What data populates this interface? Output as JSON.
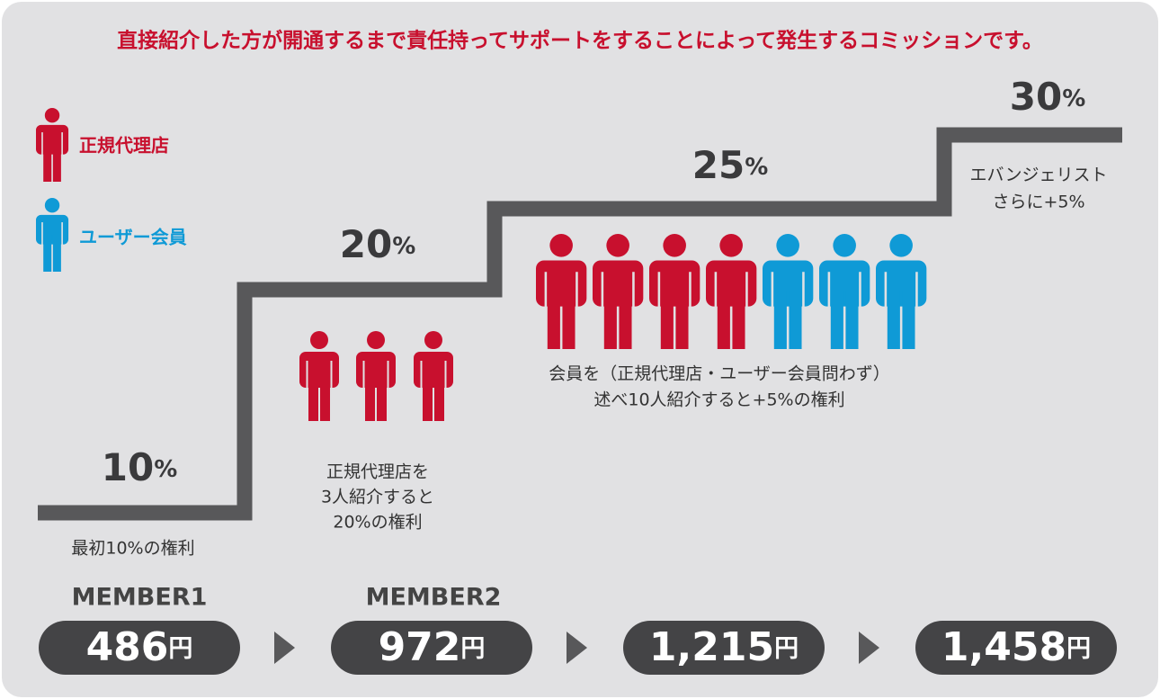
{
  "title": "直接紹介した方が開通するまで責任持ってサポートをすることによって発生するコミッションです。",
  "legend": [
    {
      "label": "正規代理店",
      "color": "#c8102e"
    },
    {
      "label": "ユーザー会員",
      "color": "#0f9ad6"
    }
  ],
  "steps": [
    {
      "rate": "10",
      "unit": "%",
      "description": [
        "最初10%の権利"
      ]
    },
    {
      "rate": "20",
      "unit": "%",
      "description": [
        "正規代理店を",
        "3人紹介すると",
        "20%の権利"
      ]
    },
    {
      "rate": "25",
      "unit": "%",
      "description": [
        "会員を（正規代理店・ユーザー会員問わず）",
        "述べ10人紹介すると+5%の権利"
      ]
    },
    {
      "rate": "30",
      "unit": "%",
      "description": [
        "エバンジェリスト",
        "さらに+5%"
      ]
    }
  ],
  "members": [
    "MEMBER1",
    "MEMBER2"
  ],
  "prices": [
    {
      "amount": "486",
      "unit": "円"
    },
    {
      "amount": "972",
      "unit": "円"
    },
    {
      "amount": "1,215",
      "unit": "円"
    },
    {
      "amount": "1,458",
      "unit": "円"
    }
  ]
}
